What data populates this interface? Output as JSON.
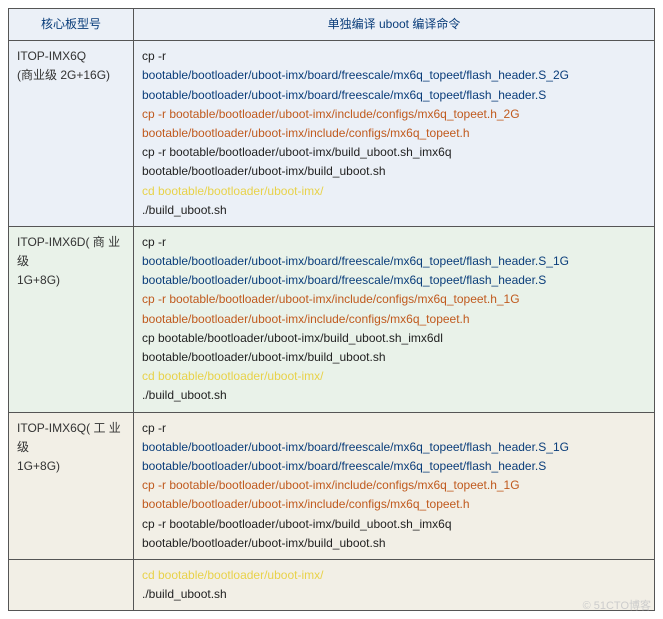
{
  "headers": {
    "model": "核心板型号",
    "command": "单独编译 uboot 编译命令"
  },
  "rows": [
    {
      "bg": "bg-blue",
      "model": "ITOP-IMX6Q\n(商业级  2G+16G)",
      "lines": [
        {
          "cls": "c-cp",
          "text": "cp -r"
        },
        {
          "cls": "c-path",
          "text": "bootable/bootloader/uboot-imx/board/freescale/mx6q_topeet/flash_header.S_2G"
        },
        {
          "cls": "c-path",
          "text": "bootable/bootloader/uboot-imx/board/freescale/mx6q_topeet/flash_header.S"
        },
        {
          "cls": "c-orange",
          "text": "cp -r bootable/bootloader/uboot-imx/include/configs/mx6q_topeet.h_2G"
        },
        {
          "cls": "c-orange",
          "text": "bootable/bootloader/uboot-imx/include/configs/mx6q_topeet.h"
        },
        {
          "cls": "c-cp",
          "text": "cp -r bootable/bootloader/uboot-imx/build_uboot.sh_imx6q"
        },
        {
          "cls": "c-cp",
          "text": "bootable/bootloader/uboot-imx/build_uboot.sh"
        },
        {
          "cls": "c-yellow",
          "text": "cd bootable/bootloader/uboot-imx/"
        },
        {
          "cls": "c-cp",
          "text": "./build_uboot.sh"
        }
      ]
    },
    {
      "bg": "bg-green",
      "model": "ITOP-IMX6D( 商 业 级\n1G+8G)",
      "lines": [
        {
          "cls": "c-cp",
          "text": "cp -r"
        },
        {
          "cls": "c-path",
          "text": "bootable/bootloader/uboot-imx/board/freescale/mx6q_topeet/flash_header.S_1G"
        },
        {
          "cls": "c-path",
          "text": "bootable/bootloader/uboot-imx/board/freescale/mx6q_topeet/flash_header.S"
        },
        {
          "cls": "c-orange",
          "text": "cp -r bootable/bootloader/uboot-imx/include/configs/mx6q_topeet.h_1G"
        },
        {
          "cls": "c-orange",
          "text": "bootable/bootloader/uboot-imx/include/configs/mx6q_topeet.h"
        },
        {
          "cls": "c-cp",
          "text": "cp bootable/bootloader/uboot-imx/build_uboot.sh_imx6dl"
        },
        {
          "cls": "c-cp",
          "text": "bootable/bootloader/uboot-imx/build_uboot.sh"
        },
        {
          "cls": "c-yellow",
          "text": "cd bootable/bootloader/uboot-imx/"
        },
        {
          "cls": "c-cp",
          "text": "./build_uboot.sh"
        }
      ]
    },
    {
      "bg": "bg-tan",
      "model": "ITOP-IMX6Q( 工 业 级\n1G+8G)",
      "lines": [
        {
          "cls": "c-cp",
          "text": "cp -r"
        },
        {
          "cls": "c-path",
          "text": "bootable/bootloader/uboot-imx/board/freescale/mx6q_topeet/flash_header.S_1G"
        },
        {
          "cls": "c-path",
          "text": "bootable/bootloader/uboot-imx/board/freescale/mx6q_topeet/flash_header.S"
        },
        {
          "cls": "c-orange",
          "text": "cp -r bootable/bootloader/uboot-imx/include/configs/mx6q_topeet.h_1G"
        },
        {
          "cls": "c-orange",
          "text": "bootable/bootloader/uboot-imx/include/configs/mx6q_topeet.h"
        },
        {
          "cls": "c-cp",
          "text": "cp -r bootable/bootloader/uboot-imx/build_uboot.sh_imx6q"
        },
        {
          "cls": "c-cp",
          "text": "bootable/bootloader/uboot-imx/build_uboot.sh"
        }
      ]
    },
    {
      "bg": "bg-tan",
      "model": "",
      "lines": [
        {
          "cls": "c-yellow",
          "text": "cd bootable/bootloader/uboot-imx/"
        },
        {
          "cls": "c-cp",
          "text": "./build_uboot.sh"
        }
      ]
    }
  ],
  "watermark": "© 51CTO博客"
}
